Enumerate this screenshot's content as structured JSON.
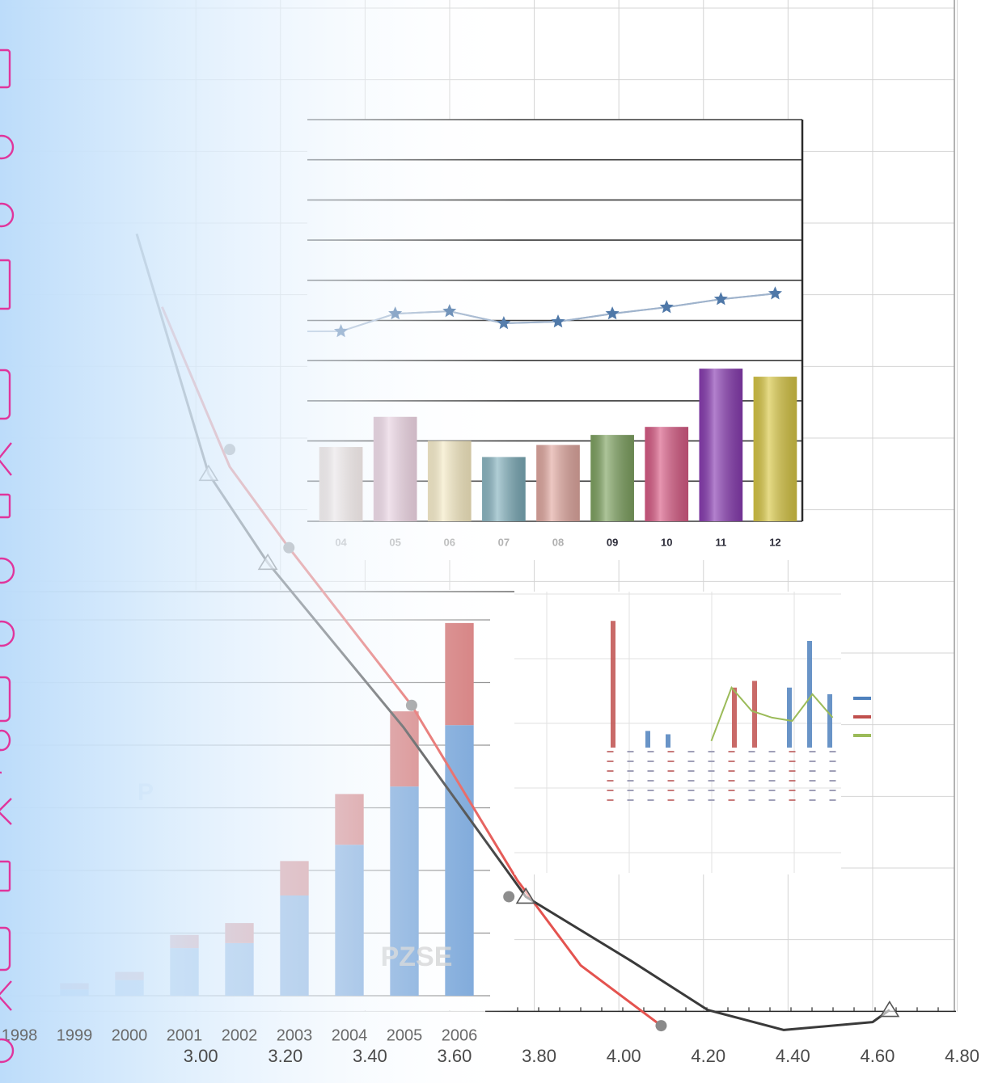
{
  "chart_data": [
    {
      "type": "line",
      "xlim": [
        2.6,
        4.82
      ],
      "ylim": [
        -1,
        14
      ],
      "grid": true,
      "xticks": [
        {
          "value": 3,
          "label": "3.00"
        },
        {
          "value": 3.2,
          "label": "3.20"
        },
        {
          "value": 3.4,
          "label": "3.40"
        },
        {
          "value": 3.6,
          "label": "3.60"
        },
        {
          "value": 3.8,
          "label": "3.80"
        },
        {
          "value": 4,
          "label": "4.00"
        },
        {
          "value": 4.2,
          "label": "4.20"
        },
        {
          "value": 4.4,
          "label": "4.40"
        },
        {
          "value": 4.6,
          "label": "4.60"
        },
        {
          "value": 4.8,
          "label": "4.80"
        }
      ],
      "series": [
        {
          "style": "line",
          "color": "#e4534f",
          "x": [
            2.92,
            3.08,
            3.22,
            3.51,
            3.76,
            3.91,
            4.1
          ],
          "values": [
            9.83,
            7.6,
            6.47,
            4.27,
            1.83,
            0.64,
            -0.2
          ]
        },
        {
          "style": "line",
          "color": "#3a3a3a",
          "x": [
            2.86,
            3.03,
            3.17,
            3.49,
            3.78,
            4.03,
            4.21,
            4.39,
            4.6,
            4.64
          ],
          "values": [
            10.85,
            7.5,
            6.26,
            3.97,
            1.6,
            0.7,
            0.02,
            -0.26,
            -0.15,
            0.02
          ]
        },
        {
          "style": "marker",
          "marker": "circle",
          "color": "#8a8a8a",
          "x": [
            3.08,
            3.22,
            3.51,
            3.74,
            4.1
          ],
          "values": [
            7.84,
            6.47,
            4.27,
            1.6,
            -0.2
          ]
        },
        {
          "style": "marker",
          "marker": "triangle",
          "color": "#555555",
          "x": [
            3.03,
            3.17,
            3.78,
            4.64
          ],
          "values": [
            7.5,
            6.26,
            1.6,
            0.02
          ]
        }
      ]
    },
    {
      "type": "bar",
      "ylim": [
        0,
        10
      ],
      "categories": [
        "04",
        "05",
        "06",
        "07",
        "08",
        "09",
        "10",
        "11",
        "12"
      ],
      "values": [
        1.85,
        2.6,
        2.0,
        1.6,
        1.9,
        2.15,
        2.35,
        3.8,
        3.6
      ],
      "colors": [
        "#f1d9cf",
        "#e6bdd0",
        "#f5e6b5",
        "#7eaebb",
        "#e3aaa2",
        "#80a462",
        "#d95c86",
        "#8a3db3",
        "#d9c846"
      ],
      "line_values": [
        4.73,
        5.17,
        5.23,
        4.93,
        4.97,
        5.17,
        5.33,
        5.53,
        5.67
      ],
      "line_color": "#4f78a8"
    },
    {
      "type": "stacked_bar",
      "ylim": [
        0,
        6
      ],
      "categories": [
        "1998",
        "1999",
        "2000",
        "2001",
        "2002",
        "2003",
        "2004",
        "2005",
        "2006"
      ],
      "series": [
        {
          "color": "#6f9fd6",
          "values": [
            0,
            0.1,
            0.25,
            0.76,
            0.84,
            1.6,
            2.41,
            3.34,
            4.32
          ]
        },
        {
          "color": "#d27474",
          "values": [
            0,
            0.1,
            0.13,
            0.21,
            0.32,
            0.55,
            0.81,
            1.2,
            1.63
          ]
        }
      ],
      "annotations": [
        "PZSE",
        "P"
      ]
    },
    {
      "type": "combo",
      "ylim": [
        0,
        4
      ],
      "categories": [
        null,
        null,
        null,
        null,
        null,
        null,
        null,
        null,
        null,
        null,
        null,
        null
      ],
      "series": [
        {
          "style": "bar",
          "color": "#4f81bd",
          "values": [
            0,
            0,
            0.5,
            0.4,
            0,
            0,
            0,
            0,
            0,
            1.8,
            3.2,
            1.6
          ]
        },
        {
          "style": "bar",
          "color": "#c0504d",
          "values": [
            3.8,
            0,
            0,
            0,
            0,
            0,
            1.8,
            2.0,
            0,
            0,
            0,
            0
          ]
        },
        {
          "style": "line",
          "color": "#9bbb59",
          "values": [
            null,
            null,
            null,
            null,
            null,
            0.2,
            1.8,
            1.1,
            0.9,
            0.8,
            1.6,
            0.9
          ]
        }
      ]
    }
  ]
}
